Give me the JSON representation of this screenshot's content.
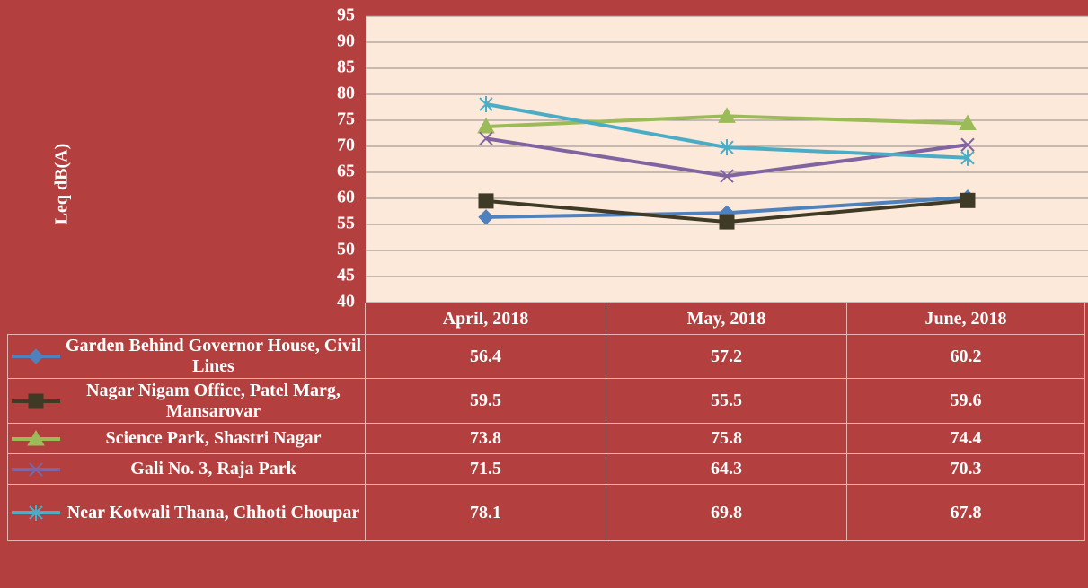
{
  "chart_data": {
    "type": "line",
    "y_label": "Leq dB(A)",
    "categories": [
      "April, 2018",
      "May, 2018",
      "June, 2018"
    ],
    "ylim": [
      40,
      95
    ],
    "yticks": [
      40,
      45,
      50,
      55,
      60,
      65,
      70,
      75,
      80,
      85,
      90,
      95
    ],
    "grid": true,
    "series": [
      {
        "name": "Garden Behind Governor House, Civil Lines",
        "color": "#4f81bd",
        "marker": "diamond",
        "values": [
          56.4,
          57.2,
          60.2
        ]
      },
      {
        "name": "Nagar Nigam Office, Patel Marg, Mansarovar",
        "color": "#3f3a26",
        "marker": "square",
        "values": [
          59.5,
          55.5,
          59.6
        ]
      },
      {
        "name": "Science Park, Shastri Nagar",
        "color": "#9bbb59",
        "marker": "triangle",
        "values": [
          73.8,
          75.8,
          74.4
        ]
      },
      {
        "name": "Gali No. 3, Raja Park",
        "color": "#8064a2",
        "marker": "x",
        "values": [
          71.5,
          64.3,
          70.3
        ]
      },
      {
        "name": "Near Kotwali Thana, Chhoti Choupar",
        "color": "#4bacc6",
        "marker": "star",
        "values": [
          78.1,
          69.8,
          67.8
        ]
      }
    ]
  }
}
